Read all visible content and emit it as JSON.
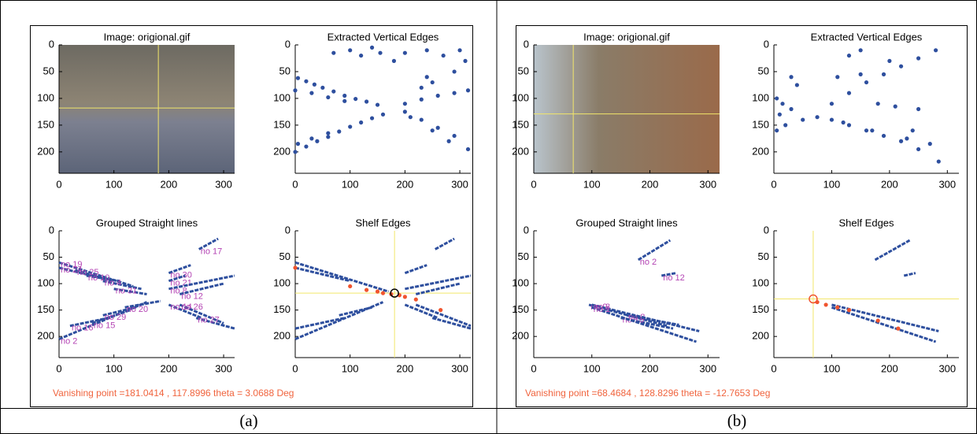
{
  "panels": [
    {
      "caption": "(a)",
      "note": "Vanishing point =181.0414 , 117.8996 theta = 3.0688 Deg"
    },
    {
      "caption": "(b)",
      "note": "Vanishing point =68.4684 , 128.8296 theta = -12.7653 Deg"
    }
  ],
  "chart_data": [
    {
      "type": "image",
      "title": "Image: origional.gif",
      "xlim": [
        0,
        320
      ],
      "ylim": [
        240,
        0
      ],
      "xticks": [
        0,
        100,
        200,
        300
      ],
      "yticks": [
        0,
        50,
        100,
        150,
        200
      ],
      "crosshair": {
        "x": 181,
        "y": 118
      },
      "color": "#f2e66a"
    },
    {
      "type": "scatter",
      "title": "Extracted Vertical Edges",
      "xlim": [
        0,
        320
      ],
      "ylim": [
        240,
        0
      ],
      "xticks": [
        0,
        100,
        200,
        300
      ],
      "yticks": [
        0,
        50,
        100,
        150,
        200
      ],
      "color": "#2e4f9e",
      "x": [
        5,
        20,
        35,
        50,
        70,
        90,
        110,
        130,
        150,
        0,
        30,
        60,
        90,
        0,
        20,
        40,
        60,
        80,
        100,
        120,
        140,
        160,
        5,
        30,
        60,
        70,
        100,
        120,
        140,
        155,
        180,
        200,
        240,
        270,
        300,
        310,
        200,
        230,
        260,
        290,
        315,
        200,
        230,
        260,
        290,
        315,
        210,
        250,
        280,
        240,
        250,
        230,
        290
      ],
      "y": [
        62,
        68,
        74,
        80,
        87,
        95,
        101,
        106,
        112,
        85,
        90,
        98,
        105,
        200,
        190,
        180,
        172,
        162,
        153,
        145,
        137,
        130,
        185,
        175,
        165,
        15,
        10,
        20,
        5,
        15,
        30,
        15,
        10,
        20,
        10,
        30,
        110,
        102,
        95,
        90,
        85,
        125,
        140,
        155,
        170,
        195,
        135,
        160,
        180,
        60,
        70,
        80,
        50
      ]
    },
    {
      "type": "lines",
      "title": "Grouped Straight lines",
      "xlim": [
        0,
        320
      ],
      "ylim": [
        240,
        0
      ],
      "xticks": [
        0,
        100,
        200,
        300
      ],
      "yticks": [
        0,
        50,
        100,
        150,
        200
      ],
      "color": "#2e4f9e",
      "label_color": "#b444b4",
      "lines": [
        {
          "label": "no 19",
          "x": [
            0,
            135
          ],
          "y": [
            60,
            105
          ]
        },
        {
          "label": "no 24",
          "x": [
            0,
            100
          ],
          "y": [
            70,
            95
          ]
        },
        {
          "label": "no 25",
          "x": [
            30,
            80
          ],
          "y": [
            75,
            90
          ]
        },
        {
          "label": "no 10",
          "x": [
            50,
            110
          ],
          "y": [
            85,
            95
          ]
        },
        {
          "label": "no 4",
          "x": [
            80,
            150
          ],
          "y": [
            95,
            110
          ]
        },
        {
          "label": "no 31",
          "x": [
            100,
            160
          ],
          "y": [
            110,
            120
          ]
        },
        {
          "label": "no 2",
          "x": [
            0,
            160
          ],
          "y": [
            205,
            135
          ]
        },
        {
          "label": "no 15",
          "x": [
            60,
            130
          ],
          "y": [
            175,
            150
          ]
        },
        {
          "label": "no 16",
          "x": [
            20,
            90
          ],
          "y": [
            180,
            165
          ]
        },
        {
          "label": "no 29",
          "x": [
            80,
            140
          ],
          "y": [
            160,
            145
          ]
        },
        {
          "label": "no 20",
          "x": [
            120,
            185
          ],
          "y": [
            145,
            133
          ]
        },
        {
          "label": "no 30",
          "x": [
            200,
            240
          ],
          "y": [
            80,
            65
          ]
        },
        {
          "label": "no 21",
          "x": [
            200,
            230
          ],
          "y": [
            95,
            85
          ]
        },
        {
          "label": "no 17",
          "x": [
            255,
            290
          ],
          "y": [
            35,
            15
          ]
        },
        {
          "label": "no 8",
          "x": [
            200,
            320
          ],
          "y": [
            110,
            85
          ]
        },
        {
          "label": "no 12",
          "x": [
            220,
            300
          ],
          "y": [
            120,
            100
          ]
        },
        {
          "label": "no 14",
          "x": [
            200,
            260
          ],
          "y": [
            140,
            165
          ]
        },
        {
          "label": "no 26",
          "x": [
            220,
            300
          ],
          "y": [
            140,
            175
          ]
        },
        {
          "label": "no 27",
          "x": [
            250,
            320
          ],
          "y": [
            165,
            185
          ]
        }
      ]
    },
    {
      "type": "shelf",
      "title": "Shelf Edges",
      "xlim": [
        0,
        320
      ],
      "ylim": [
        240,
        0
      ],
      "xticks": [
        0,
        100,
        200,
        300
      ],
      "yticks": [
        0,
        50,
        100,
        150,
        200
      ],
      "color": "#2e4f9e",
      "point_color": "#f0542e",
      "cross_color": "#f2e66a",
      "lines": [
        {
          "x": [
            0,
            170
          ],
          "y": [
            60,
            115
          ]
        },
        {
          "x": [
            0,
            100
          ],
          "y": [
            70,
            95
          ]
        },
        {
          "x": [
            0,
            160
          ],
          "y": [
            205,
            135
          ]
        },
        {
          "x": [
            0,
            90
          ],
          "y": [
            185,
            165
          ]
        },
        {
          "x": [
            80,
            140
          ],
          "y": [
            160,
            145
          ]
        },
        {
          "x": [
            200,
            320
          ],
          "y": [
            110,
            85
          ]
        },
        {
          "x": [
            220,
            300
          ],
          "y": [
            120,
            100
          ]
        },
        {
          "x": [
            200,
            240
          ],
          "y": [
            80,
            65
          ]
        },
        {
          "x": [
            255,
            290
          ],
          "y": [
            35,
            15
          ]
        },
        {
          "x": [
            200,
            260
          ],
          "y": [
            140,
            165
          ]
        },
        {
          "x": [
            220,
            320
          ],
          "y": [
            140,
            180
          ]
        },
        {
          "x": [
            250,
            320
          ],
          "y": [
            165,
            185
          ]
        }
      ],
      "points": {
        "x": [
          0,
          100,
          130,
          150,
          160,
          175,
          190,
          200,
          220,
          265
        ],
        "y": [
          70,
          105,
          112,
          115,
          118,
          120,
          122,
          125,
          130,
          150
        ]
      },
      "vanishing_point": {
        "x": 181,
        "y": 118
      }
    },
    {
      "type": "image",
      "title": "Image: origional.gif",
      "xlim": [
        0,
        320
      ],
      "ylim": [
        240,
        0
      ],
      "xticks": [
        0,
        100,
        200,
        300
      ],
      "yticks": [
        0,
        50,
        100,
        150,
        200
      ],
      "crosshair": {
        "x": 68,
        "y": 129
      },
      "color": "#f2e66a"
    },
    {
      "type": "scatter",
      "title": "Extracted Vertical Edges",
      "xlim": [
        0,
        320
      ],
      "ylim": [
        240,
        0
      ],
      "xticks": [
        0,
        100,
        200,
        300
      ],
      "yticks": [
        0,
        50,
        100,
        150,
        200
      ],
      "color": "#2e4f9e",
      "x": [
        5,
        15,
        10,
        5,
        20,
        30,
        40,
        30,
        50,
        75,
        100,
        130,
        160,
        190,
        220,
        250,
        285,
        120,
        170,
        230,
        270,
        100,
        130,
        160,
        190,
        220,
        250,
        280,
        110,
        150,
        180,
        210,
        250,
        200,
        130,
        150,
        240
      ],
      "y": [
        100,
        110,
        130,
        160,
        150,
        60,
        75,
        120,
        140,
        135,
        140,
        150,
        160,
        170,
        180,
        195,
        218,
        145,
        160,
        175,
        185,
        110,
        90,
        70,
        55,
        40,
        25,
        10,
        60,
        55,
        110,
        115,
        120,
        30,
        20,
        10,
        160
      ]
    },
    {
      "type": "lines",
      "title": "Grouped Straight lines",
      "xlim": [
        0,
        320
      ],
      "ylim": [
        240,
        0
      ],
      "xticks": [
        0,
        100,
        200,
        300
      ],
      "yticks": [
        0,
        50,
        100,
        150,
        200
      ],
      "color": "#2e4f9e",
      "label_color": "#b444b4",
      "lines": [
        {
          "label": "no 2",
          "x": [
            180,
            235
          ],
          "y": [
            55,
            18
          ]
        },
        {
          "label": "no 12",
          "x": [
            220,
            245
          ],
          "y": [
            85,
            80
          ]
        },
        {
          "label": "no 9",
          "x": [
            95,
            230
          ],
          "y": [
            140,
            180
          ]
        },
        {
          "label": "no 10",
          "x": [
            150,
            240
          ],
          "y": [
            165,
            185
          ]
        },
        {
          "label": "no 8",
          "x": [
            160,
            250
          ],
          "y": [
            160,
            178
          ]
        },
        {
          "label": "no 3",
          "x": [
            100,
            285
          ],
          "y": [
            140,
            190
          ]
        },
        {
          "label": "no 1",
          "x": [
            100,
            280
          ],
          "y": [
            145,
            210
          ]
        }
      ]
    },
    {
      "type": "shelf",
      "title": "Shelf Edges",
      "xlim": [
        0,
        320
      ],
      "ylim": [
        240,
        0
      ],
      "xticks": [
        0,
        100,
        200,
        300
      ],
      "yticks": [
        0,
        50,
        100,
        150,
        200
      ],
      "color": "#2e4f9e",
      "point_color": "#f0542e",
      "cross_color": "#f2e66a",
      "lines": [
        {
          "x": [
            175,
            235
          ],
          "y": [
            55,
            18
          ]
        },
        {
          "x": [
            225,
            245
          ],
          "y": [
            85,
            80
          ]
        },
        {
          "x": [
            100,
            285
          ],
          "y": [
            140,
            190
          ]
        },
        {
          "x": [
            100,
            280
          ],
          "y": [
            145,
            210
          ]
        }
      ],
      "points": {
        "x": [
          75,
          90,
          110,
          130,
          180,
          215
        ],
        "y": [
          135,
          140,
          145,
          150,
          170,
          185
        ]
      },
      "vanishing_point": {
        "x": 68,
        "y": 129
      }
    }
  ]
}
